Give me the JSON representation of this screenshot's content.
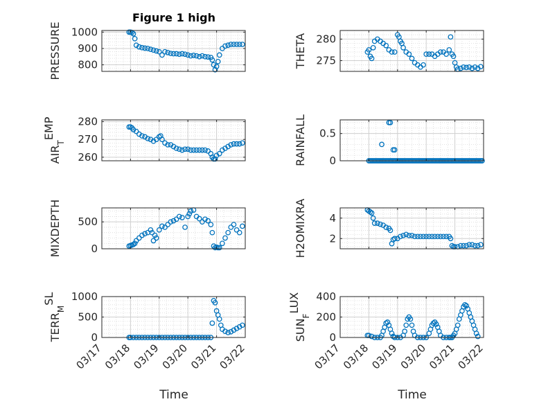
{
  "figure": {
    "title": "Figure 1 high",
    "marker_color": "#0072BD",
    "x_tick_labels": [
      "03/17",
      "03/18",
      "03/19",
      "03/20",
      "03/21",
      "03/22"
    ],
    "x_label": "Time"
  },
  "chart_data": [
    {
      "type": "scatter",
      "ylabel": "PRESSURE",
      "title": "Figure 1 high",
      "xlim": [
        0,
        5
      ],
      "ylim": [
        760,
        1010
      ],
      "yticks": [
        800,
        900,
        1000
      ],
      "series": [
        {
          "x": [
            0.95,
            1.0,
            1.05,
            1.1,
            1.15,
            1.2,
            1.3,
            1.4,
            1.5,
            1.6,
            1.7,
            1.8,
            1.9,
            2.0,
            2.1,
            2.2,
            2.3,
            2.4,
            2.5,
            2.6,
            2.7,
            2.8,
            2.9,
            3.0,
            3.1,
            3.2,
            3.3,
            3.4,
            3.5,
            3.6,
            3.7,
            3.8,
            3.85,
            3.9,
            3.95,
            4.0,
            4.05,
            4.1,
            4.2,
            4.3,
            4.4,
            4.5,
            4.6,
            4.7,
            4.8,
            4.9
          ],
          "y": [
            1000,
            1000,
            998,
            990,
            960,
            920,
            910,
            905,
            902,
            900,
            895,
            890,
            885,
            880,
            860,
            880,
            875,
            870,
            868,
            868,
            865,
            868,
            865,
            860,
            855,
            858,
            855,
            850,
            855,
            850,
            848,
            845,
            830,
            800,
            770,
            790,
            820,
            860,
            900,
            915,
            920,
            925,
            925,
            925,
            925,
            925
          ]
        }
      ]
    },
    {
      "type": "scatter",
      "ylabel": "THETA",
      "xlim": [
        0,
        5
      ],
      "ylim": [
        272.5,
        282
      ],
      "yticks": [
        275,
        280
      ],
      "series": [
        {
          "x": [
            0.95,
            1.0,
            1.05,
            1.1,
            1.15,
            1.2,
            1.3,
            1.4,
            1.5,
            1.6,
            1.7,
            1.8,
            1.9,
            2.0,
            2.05,
            2.1,
            2.15,
            2.2,
            2.3,
            2.4,
            2.5,
            2.6,
            2.7,
            2.8,
            2.9,
            3.0,
            3.1,
            3.2,
            3.3,
            3.4,
            3.5,
            3.6,
            3.7,
            3.8,
            3.85,
            3.9,
            3.95,
            4.0,
            4.05,
            4.1,
            4.2,
            4.3,
            4.4,
            4.5,
            4.6,
            4.7,
            4.8,
            4.9
          ],
          "y": [
            277,
            277.5,
            276,
            275.5,
            278,
            279.5,
            280,
            279.5,
            279,
            278.5,
            277.5,
            277,
            277,
            281,
            280.5,
            279.5,
            279,
            278,
            277,
            276.5,
            275.5,
            274.5,
            274,
            273.5,
            274,
            276.5,
            276.5,
            276.5,
            276,
            276.5,
            277,
            277,
            276.5,
            277.5,
            280.5,
            276.5,
            276,
            274.5,
            273.5,
            273,
            273.2,
            273.5,
            273.4,
            273.5,
            273.2,
            273.5,
            273.2,
            273.6
          ]
        }
      ]
    },
    {
      "type": "scatter",
      "ylabel_main": "AIR",
      "ylabel_sub": "T",
      "ylabel_rest": "EMP",
      "xlim": [
        0,
        5
      ],
      "ylim": [
        258,
        281
      ],
      "yticks": [
        260,
        270,
        280
      ],
      "series": [
        {
          "x": [
            0.95,
            1.0,
            1.05,
            1.1,
            1.2,
            1.3,
            1.4,
            1.5,
            1.6,
            1.7,
            1.8,
            1.9,
            2.0,
            2.05,
            2.1,
            2.2,
            2.3,
            2.4,
            2.5,
            2.6,
            2.7,
            2.8,
            2.9,
            3.0,
            3.1,
            3.2,
            3.3,
            3.4,
            3.5,
            3.6,
            3.7,
            3.8,
            3.85,
            3.9,
            3.95,
            4.0,
            4.1,
            4.2,
            4.3,
            4.4,
            4.5,
            4.6,
            4.7,
            4.8,
            4.9
          ],
          "y": [
            277,
            277,
            276.5,
            275.5,
            274.5,
            273,
            272,
            271.5,
            270.5,
            270,
            269,
            270,
            271.5,
            272,
            270,
            268,
            267,
            267,
            266,
            265,
            264.5,
            264,
            264.5,
            264.5,
            264,
            264,
            264,
            264,
            264,
            264,
            263.5,
            262,
            260,
            259,
            259,
            261,
            262,
            264,
            265,
            266,
            267,
            267.5,
            267.5,
            267.5,
            268
          ]
        }
      ]
    },
    {
      "type": "scatter",
      "ylabel": "RAINFALL",
      "xlim": [
        0,
        5
      ],
      "ylim": [
        0,
        0.75
      ],
      "yticks": [
        0,
        0.5
      ],
      "series": [
        {
          "x": [
            1.0,
            1.05,
            1.1,
            1.15,
            1.2,
            1.25,
            1.3,
            1.35,
            1.4,
            1.45,
            1.5,
            1.55,
            1.6,
            1.65,
            1.7,
            1.75,
            1.8,
            1.85,
            1.9,
            1.95,
            2.0,
            2.05,
            2.1,
            2.15,
            2.2,
            2.25,
            2.3,
            2.35,
            2.4,
            2.45,
            2.5,
            2.55,
            2.6,
            2.65,
            2.7,
            2.75,
            2.8,
            2.85,
            2.9,
            2.95,
            3.0,
            3.05,
            3.1,
            3.15,
            3.2,
            3.25,
            3.3,
            3.35,
            3.4,
            3.45,
            3.5,
            3.55,
            3.6,
            3.65,
            3.7,
            3.75,
            3.8,
            3.85,
            3.9,
            3.95,
            4.0,
            4.05,
            4.1,
            4.15,
            4.2,
            4.25,
            4.3,
            4.35,
            4.4,
            4.45,
            4.5,
            4.55,
            4.6,
            4.65,
            4.7,
            4.75,
            4.8,
            4.85,
            4.9,
            4.95,
            1.45,
            1.7,
            1.75,
            1.85,
            1.9
          ],
          "y": [
            0,
            0,
            0,
            0,
            0,
            0,
            0,
            0,
            0,
            0,
            0,
            0,
            0,
            0,
            0,
            0,
            0,
            0,
            0,
            0,
            0,
            0,
            0,
            0,
            0,
            0,
            0,
            0,
            0,
            0,
            0,
            0,
            0,
            0,
            0,
            0,
            0,
            0,
            0,
            0,
            0,
            0,
            0,
            0,
            0,
            0,
            0,
            0,
            0,
            0,
            0,
            0,
            0,
            0,
            0,
            0,
            0,
            0,
            0,
            0,
            0,
            0,
            0,
            0,
            0,
            0,
            0,
            0,
            0,
            0,
            0,
            0,
            0,
            0,
            0,
            0,
            0,
            0,
            0,
            0,
            0.3,
            0.7,
            0.7,
            0.2,
            0.2
          ]
        }
      ]
    },
    {
      "type": "scatter",
      "ylabel": "MIXDEPTH",
      "xlim": [
        0,
        5
      ],
      "ylim": [
        0,
        760
      ],
      "yticks": [
        0,
        500
      ],
      "series": [
        {
          "x": [
            0.95,
            1.0,
            1.05,
            1.1,
            1.15,
            1.2,
            1.3,
            1.4,
            1.5,
            1.6,
            1.7,
            1.75,
            1.8,
            1.85,
            1.9,
            2.0,
            2.1,
            2.2,
            2.3,
            2.4,
            2.5,
            2.6,
            2.7,
            2.8,
            2.9,
            3.0,
            3.05,
            3.1,
            3.2,
            3.3,
            3.4,
            3.5,
            3.6,
            3.7,
            3.8,
            3.85,
            3.9,
            3.95,
            4.0,
            4.05,
            4.1,
            4.2,
            4.3,
            4.4,
            4.5,
            4.6,
            4.7,
            4.8,
            4.9
          ],
          "y": [
            50,
            60,
            70,
            80,
            100,
            150,
            200,
            250,
            280,
            300,
            350,
            300,
            150,
            250,
            200,
            350,
            420,
            400,
            450,
            500,
            520,
            550,
            600,
            580,
            400,
            600,
            650,
            700,
            720,
            600,
            560,
            500,
            550,
            520,
            450,
            300,
            50,
            20,
            30,
            20,
            20,
            100,
            200,
            300,
            400,
            450,
            350,
            300,
            420
          ]
        }
      ]
    },
    {
      "type": "scatter",
      "ylabel": "H2OMIXRA",
      "xlim": [
        0,
        5
      ],
      "ylim": [
        1,
        5
      ],
      "yticks": [
        2,
        4
      ],
      "series": [
        {
          "x": [
            0.95,
            1.0,
            1.05,
            1.1,
            1.15,
            1.2,
            1.3,
            1.4,
            1.5,
            1.6,
            1.7,
            1.75,
            1.8,
            1.85,
            1.9,
            2.0,
            2.1,
            2.2,
            2.3,
            2.4,
            2.5,
            2.6,
            2.7,
            2.8,
            2.9,
            3.0,
            3.1,
            3.2,
            3.3,
            3.4,
            3.5,
            3.6,
            3.7,
            3.8,
            3.85,
            3.9,
            3.95,
            4.0,
            4.1,
            4.2,
            4.3,
            4.4,
            4.5,
            4.6,
            4.7,
            4.8,
            4.9
          ],
          "y": [
            4.8,
            4.7,
            4.6,
            4.5,
            4.0,
            3.5,
            3.5,
            3.4,
            3.3,
            3.1,
            3.0,
            2.8,
            1.5,
            1.9,
            2.0,
            2.0,
            2.2,
            2.3,
            2.4,
            2.3,
            2.3,
            2.2,
            2.2,
            2.2,
            2.2,
            2.2,
            2.2,
            2.2,
            2.2,
            2.2,
            2.2,
            2.2,
            2.2,
            2.2,
            2.0,
            1.3,
            1.2,
            1.2,
            1.2,
            1.3,
            1.3,
            1.3,
            1.4,
            1.4,
            1.3,
            1.3,
            1.4
          ]
        }
      ]
    },
    {
      "type": "scatter",
      "ylabel_main": "TERR",
      "ylabel_sub": "M",
      "ylabel_rest": "SL",
      "xlim": [
        0,
        5
      ],
      "ylim": [
        0,
        1000
      ],
      "yticks": [
        0,
        500,
        1000
      ],
      "series": [
        {
          "x": [
            0.95,
            1.0,
            1.1,
            1.2,
            1.3,
            1.4,
            1.5,
            1.6,
            1.7,
            1.8,
            1.9,
            2.0,
            2.1,
            2.2,
            2.3,
            2.4,
            2.5,
            2.6,
            2.7,
            2.8,
            2.9,
            3.0,
            3.1,
            3.2,
            3.3,
            3.4,
            3.5,
            3.6,
            3.7,
            3.8,
            3.85,
            3.9,
            3.95,
            4.0,
            4.05,
            4.1,
            4.15,
            4.2,
            4.3,
            4.4,
            4.5,
            4.6,
            4.7,
            4.8,
            4.9
          ],
          "y": [
            0,
            0,
            0,
            0,
            0,
            0,
            0,
            0,
            0,
            0,
            0,
            0,
            0,
            0,
            0,
            0,
            0,
            0,
            0,
            0,
            0,
            0,
            0,
            0,
            0,
            0,
            0,
            0,
            0,
            0,
            350,
            900,
            850,
            650,
            550,
            450,
            300,
            200,
            150,
            120,
            140,
            180,
            220,
            260,
            300
          ]
        }
      ]
    },
    {
      "type": "scatter",
      "ylabel_main": "SUN",
      "ylabel_sub": "F",
      "ylabel_rest": "LUX",
      "xlim": [
        0,
        5
      ],
      "ylim": [
        0,
        400
      ],
      "yticks": [
        0,
        200,
        400
      ],
      "series": [
        {
          "x": [
            0.95,
            1.0,
            1.1,
            1.2,
            1.3,
            1.4,
            1.45,
            1.5,
            1.55,
            1.6,
            1.65,
            1.7,
            1.75,
            1.8,
            1.85,
            1.9,
            2.0,
            2.1,
            2.2,
            2.25,
            2.3,
            2.35,
            2.4,
            2.45,
            2.5,
            2.55,
            2.6,
            2.7,
            2.8,
            2.9,
            3.0,
            3.1,
            3.15,
            3.2,
            3.25,
            3.3,
            3.35,
            3.4,
            3.45,
            3.5,
            3.6,
            3.7,
            3.8,
            3.85,
            3.9,
            3.95,
            4.0,
            4.05,
            4.1,
            4.15,
            4.2,
            4.25,
            4.3,
            4.35,
            4.4,
            4.45,
            4.5,
            4.55,
            4.6,
            4.65,
            4.7,
            4.75,
            4.8
          ],
          "y": [
            20,
            20,
            10,
            0,
            0,
            0,
            20,
            60,
            100,
            140,
            150,
            120,
            80,
            40,
            10,
            0,
            0,
            0,
            20,
            60,
            120,
            180,
            200,
            180,
            120,
            60,
            20,
            0,
            0,
            0,
            0,
            40,
            80,
            120,
            140,
            150,
            130,
            100,
            60,
            20,
            0,
            0,
            0,
            0,
            0,
            20,
            40,
            80,
            120,
            180,
            220,
            260,
            300,
            320,
            310,
            280,
            240,
            200,
            160,
            120,
            80,
            40,
            10
          ]
        }
      ]
    }
  ]
}
